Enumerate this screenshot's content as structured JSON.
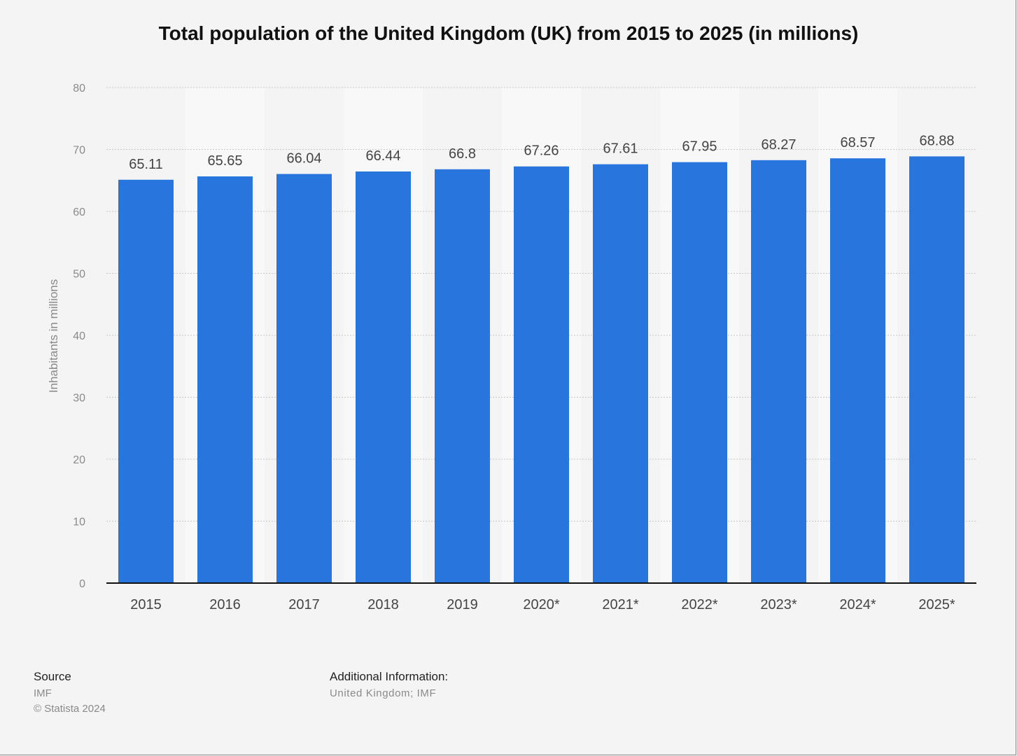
{
  "chart_data": {
    "type": "bar",
    "title": "Total population of the United Kingdom (UK) from 2015 to 2025 (in millions)",
    "ylabel": "Inhabitants in millions",
    "xlabel": "",
    "categories": [
      "2015",
      "2016",
      "2017",
      "2018",
      "2019",
      "2020*",
      "2021*",
      "2022*",
      "2023*",
      "2024*",
      "2025*"
    ],
    "values": [
      65.11,
      65.65,
      66.04,
      66.44,
      66.8,
      67.26,
      67.61,
      67.95,
      68.27,
      68.57,
      68.88
    ],
    "value_labels": [
      "65.11",
      "65.65",
      "66.04",
      "66.44",
      "66.8",
      "67.26",
      "67.61",
      "67.95",
      "68.27",
      "68.57",
      "68.88"
    ],
    "ylim": [
      0,
      80
    ],
    "yticks": [
      "0",
      "10",
      "20",
      "30",
      "40",
      "50",
      "60",
      "70",
      "80"
    ],
    "grid": true,
    "bar_color": "#2876dd"
  },
  "footer": {
    "source_heading": "Source",
    "source_value": "IMF",
    "copyright": "© Statista 2024",
    "additional_heading": "Additional Information:",
    "additional_value": "United Kingdom; IMF"
  }
}
